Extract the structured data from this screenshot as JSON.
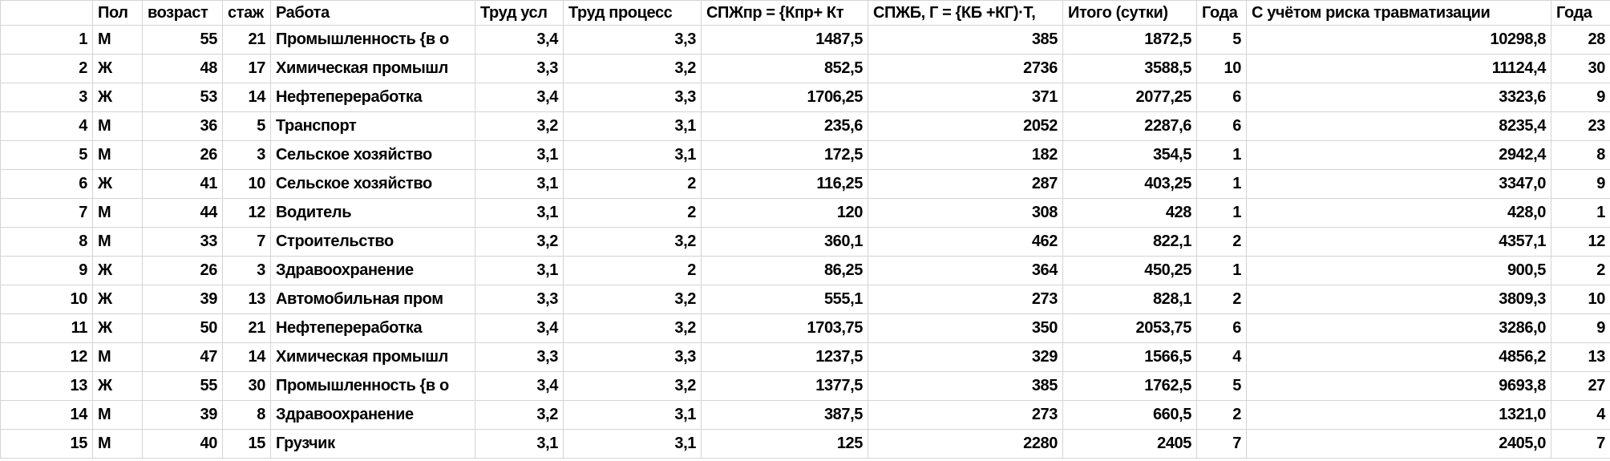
{
  "colors": {
    "background": "#ffffff",
    "gridline": "#d4d4d4",
    "text": "#000000"
  },
  "table": {
    "columns": [
      "",
      "Пол",
      "возраст",
      "стаж",
      "Работа",
      "Труд усл",
      "Труд процесс",
      "СПЖпр = {Кпр+ Кт",
      "СПЖБ, Г = {КБ +КГ)·Т,",
      "Итого (сутки)",
      "Года",
      "С учётом риска травматизации",
      "Года"
    ],
    "rows": [
      [
        "1",
        "М",
        "55",
        "21",
        "Промышленность {в о",
        "3,4",
        "3,3",
        "1487,5",
        "385",
        "1872,5",
        "5",
        "10298,8",
        "28"
      ],
      [
        "2",
        "Ж",
        "48",
        "17",
        "Химическая промышл",
        "3,3",
        "3,2",
        "852,5",
        "2736",
        "3588,5",
        "10",
        "11124,4",
        "30"
      ],
      [
        "3",
        "Ж",
        "53",
        "14",
        "Нефтепереработка",
        "3,4",
        "3,3",
        "1706,25",
        "371",
        "2077,25",
        "6",
        "3323,6",
        "9"
      ],
      [
        "4",
        "М",
        "36",
        "5",
        "Транспорт",
        "3,2",
        "3,1",
        "235,6",
        "2052",
        "2287,6",
        "6",
        "8235,4",
        "23"
      ],
      [
        "5",
        "М",
        "26",
        "3",
        "Сельское хозяйство",
        "3,1",
        "3,1",
        "172,5",
        "182",
        "354,5",
        "1",
        "2942,4",
        "8"
      ],
      [
        "6",
        "Ж",
        "41",
        "10",
        "Сельское хозяйство",
        "3,1",
        "2",
        "116,25",
        "287",
        "403,25",
        "1",
        "3347,0",
        "9"
      ],
      [
        "7",
        "М",
        "44",
        "12",
        "Водитель",
        "3,1",
        "2",
        "120",
        "308",
        "428",
        "1",
        "428,0",
        "1"
      ],
      [
        "8",
        "М",
        "33",
        "7",
        "Строительство",
        "3,2",
        "3,2",
        "360,1",
        "462",
        "822,1",
        "2",
        "4357,1",
        "12"
      ],
      [
        "9",
        "Ж",
        "26",
        "3",
        "Здравоохранение",
        "3,1",
        "2",
        "86,25",
        "364",
        "450,25",
        "1",
        "900,5",
        "2"
      ],
      [
        "10",
        "Ж",
        "39",
        "13",
        "Автомобильная пром",
        "3,3",
        "3,2",
        "555,1",
        "273",
        "828,1",
        "2",
        "3809,3",
        "10"
      ],
      [
        "11",
        "Ж",
        "50",
        "21",
        "Нефтепереработка",
        "3,4",
        "3,2",
        "1703,75",
        "350",
        "2053,75",
        "6",
        "3286,0",
        "9"
      ],
      [
        "12",
        "М",
        "47",
        "14",
        "Химическая промышл",
        "3,3",
        "3,3",
        "1237,5",
        "329",
        "1566,5",
        "4",
        "4856,2",
        "13"
      ],
      [
        "13",
        "Ж",
        "55",
        "30",
        "Промышленность {в о",
        "3,4",
        "3,2",
        "1377,5",
        "385",
        "1762,5",
        "5",
        "9693,8",
        "27"
      ],
      [
        "14",
        "М",
        "39",
        "8",
        "Здравоохранение",
        "3,2",
        "3,1",
        "387,5",
        "273",
        "660,5",
        "2",
        "1321,0",
        "4"
      ],
      [
        "15",
        "М",
        "40",
        "15",
        "Грузчик",
        "3,1",
        "3,1",
        "125",
        "2280",
        "2405",
        "7",
        "2405,0",
        "7"
      ]
    ]
  }
}
